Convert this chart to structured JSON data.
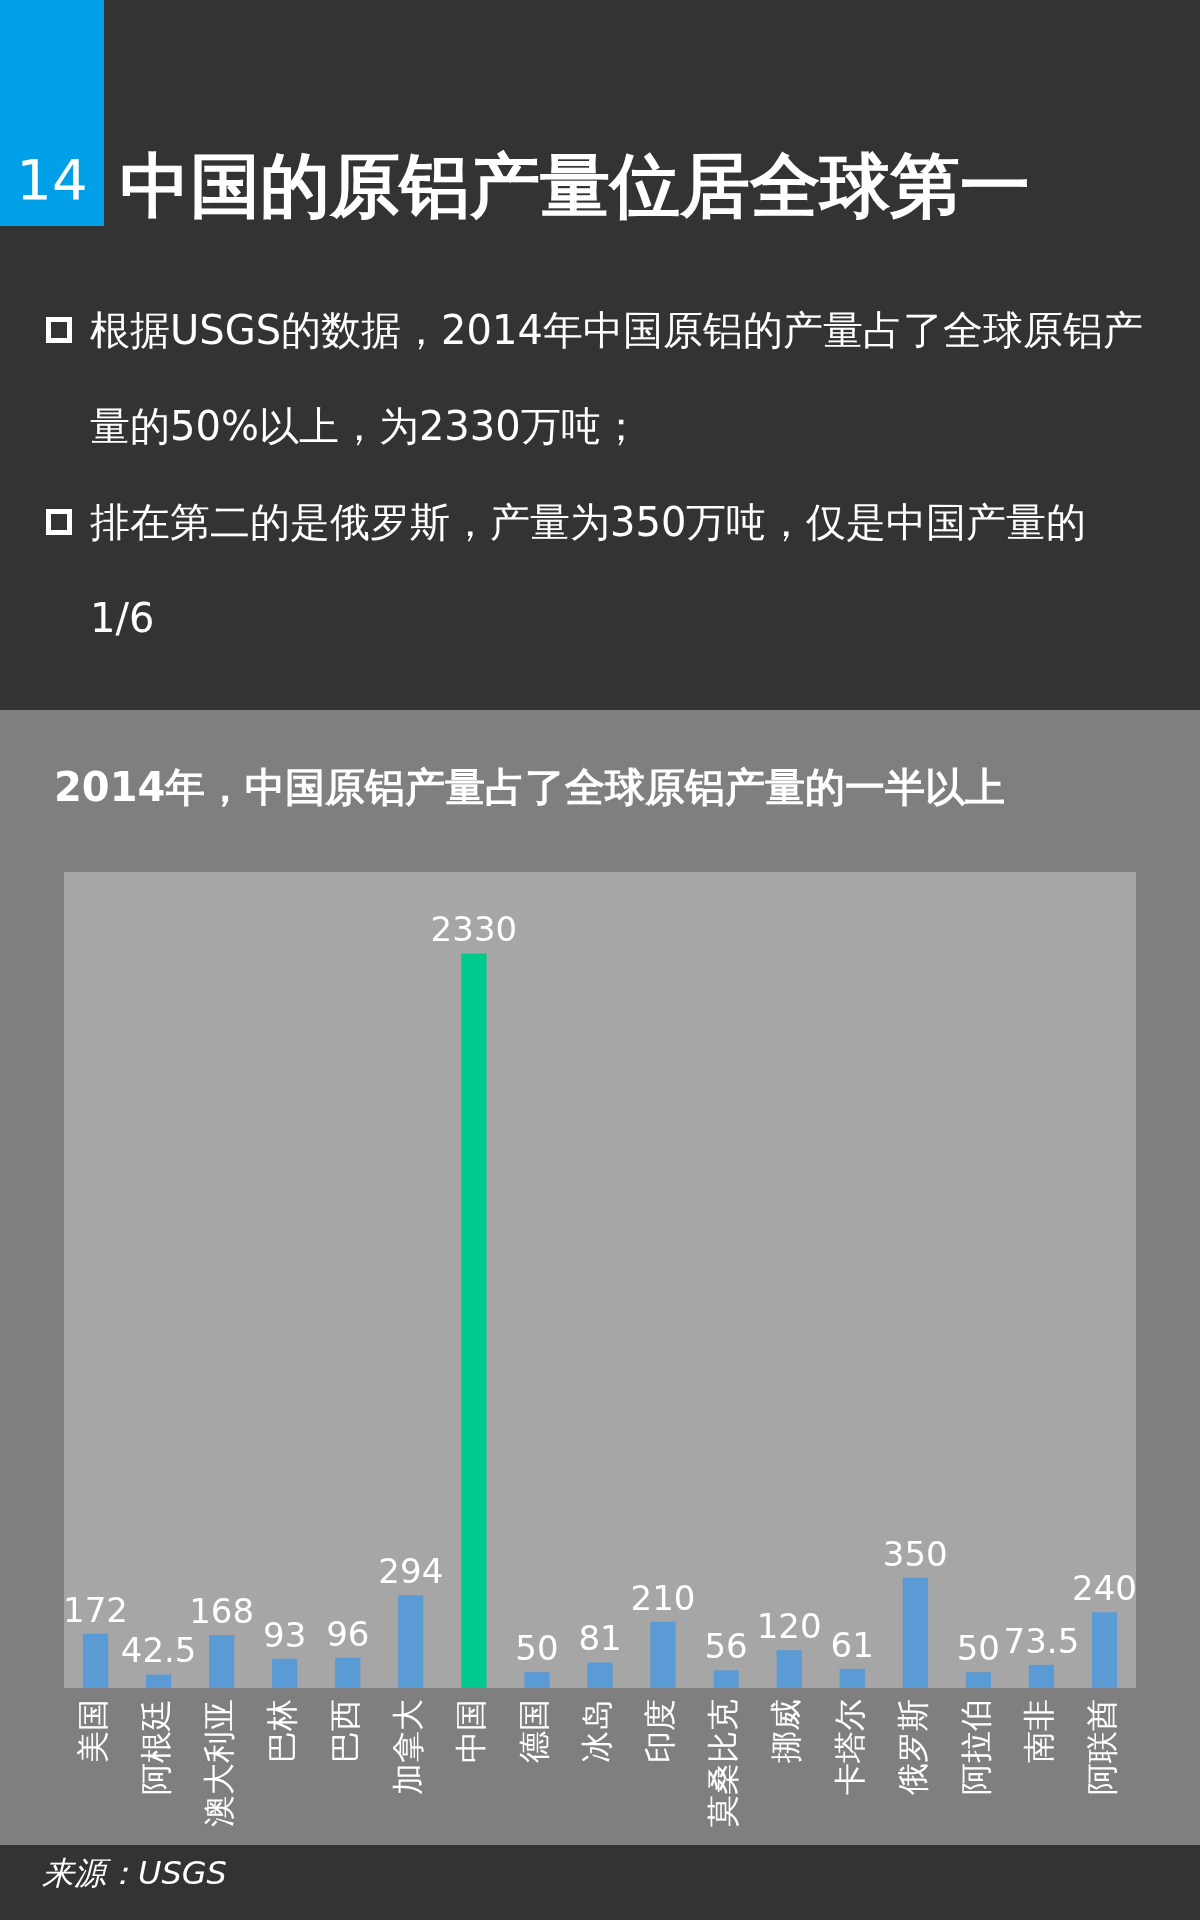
{
  "chart_data": {
    "type": "bar",
    "title": "中国的原铝产量位居全球第一",
    "subtitle": "2014年，中国原铝产量占了全球原铝产量的一半以上",
    "annotations": [
      "14",
      "根据USGS的数据，2014年中国原铝的产量占了全球原铝产量的50%以上，为2330万吨；",
      "排在第二的是俄罗斯，产量为350万吨，仅是中国产量的1/6",
      "来源：USGS"
    ],
    "categories": [
      "美国",
      "阿根廷",
      "澳大利亚",
      "巴林",
      "巴西",
      "加拿大",
      "中国",
      "德国",
      "冰岛",
      "印度",
      "莫桑比克",
      "挪威",
      "卡塔尔",
      "俄罗斯",
      "阿拉伯",
      "南非",
      "阿联酋"
    ],
    "values": [
      172,
      42.5,
      168,
      93,
      96,
      294,
      2330,
      50,
      81,
      210,
      56,
      120,
      61,
      350,
      50,
      73.5,
      240
    ],
    "colors": [
      "#5b9bd5",
      "#5b9bd5",
      "#5b9bd5",
      "#5b9bd5",
      "#5b9bd5",
      "#5b9bd5",
      "#00c98d",
      "#5b9bd5",
      "#5b9bd5",
      "#5b9bd5",
      "#5b9bd5",
      "#5b9bd5",
      "#5b9bd5",
      "#5b9bd5",
      "#5b9bd5",
      "#5b9bd5",
      "#5b9bd5"
    ],
    "data_labels": true,
    "grid": false,
    "legend": false
  }
}
